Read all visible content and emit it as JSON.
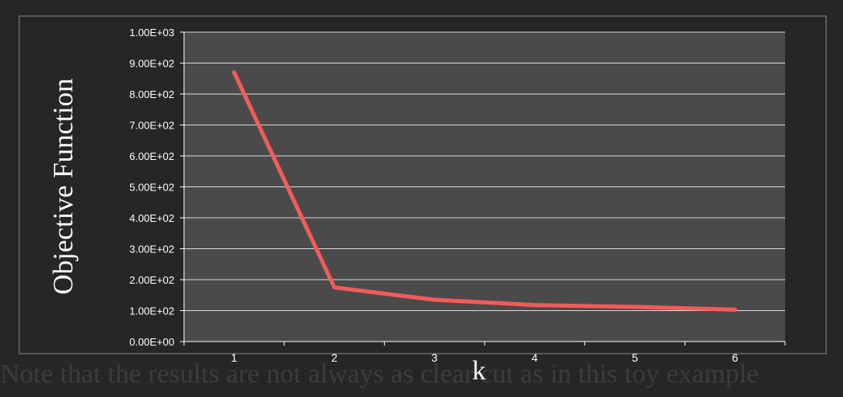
{
  "caption": "Note that the results are not always as clear cut as in this toy example",
  "chart_data": {
    "type": "line",
    "xlabel": "k",
    "ylabel": "Objective Function",
    "categories": [
      "1",
      "2",
      "3",
      "4",
      "5",
      "6"
    ],
    "x": [
      1,
      2,
      3,
      4,
      5,
      6
    ],
    "series": [
      {
        "values": [
          870,
          175,
          135,
          118,
          112,
          103
        ]
      }
    ],
    "ylim": [
      0,
      1000
    ],
    "yticks": [
      "0.00E+00",
      "1.00E+02",
      "2.00E+02",
      "3.00E+02",
      "4.00E+02",
      "5.00E+02",
      "6.00E+02",
      "7.00E+02",
      "8.00E+02",
      "9.00E+02",
      "1.00E+03"
    ],
    "grid": true,
    "legend": "none",
    "colors": {
      "line": "#F45B5B",
      "plot_background": "#4A4A4A",
      "chart_background": "#262626",
      "gridline": "#D9D9D9",
      "text": "#FFFFFF"
    }
  }
}
